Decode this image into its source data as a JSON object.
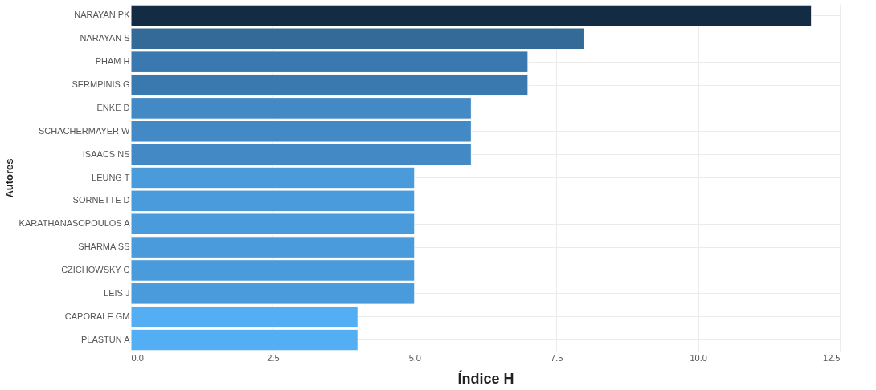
{
  "chart_data": {
    "type": "bar",
    "orientation": "horizontal",
    "xlabel": "Índice H",
    "ylabel": "Autores",
    "categories": [
      "NARAYAN PK",
      "NARAYAN S",
      "PHAM H",
      "SERMPINIS G",
      "ENKE D",
      "SCHACHERMAYER W",
      "ISAACS NS",
      "LEUNG T",
      "SORNETTE D",
      "KARATHANASOPOULOS A",
      "SHARMA SS",
      "CZICHOWSKY C",
      "LEIS J",
      "CAPORALE GM",
      "PLASTUN A"
    ],
    "values": [
      12,
      8,
      7,
      7,
      6,
      6,
      6,
      5,
      5,
      5,
      5,
      5,
      5,
      4,
      4
    ],
    "colors": [
      "#132b43",
      "#336a98",
      "#3a79b0",
      "#3a79b0",
      "#4289c6",
      "#4289c6",
      "#4289c6",
      "#4a9bdc",
      "#4a9bdc",
      "#4a9bdc",
      "#4a9bdc",
      "#4a9bdc",
      "#4a9bdc",
      "#54aef3",
      "#54aef3"
    ],
    "xlim": [
      0,
      12.5
    ],
    "xticks": [
      {
        "value": 0,
        "label": "0.0"
      },
      {
        "value": 2.5,
        "label": "2.5"
      },
      {
        "value": 5,
        "label": "5.0"
      },
      {
        "value": 7.5,
        "label": "7.5"
      },
      {
        "value": 10,
        "label": "10.0"
      },
      {
        "value": 12.5,
        "label": "12.5"
      }
    ],
    "grid": true
  }
}
